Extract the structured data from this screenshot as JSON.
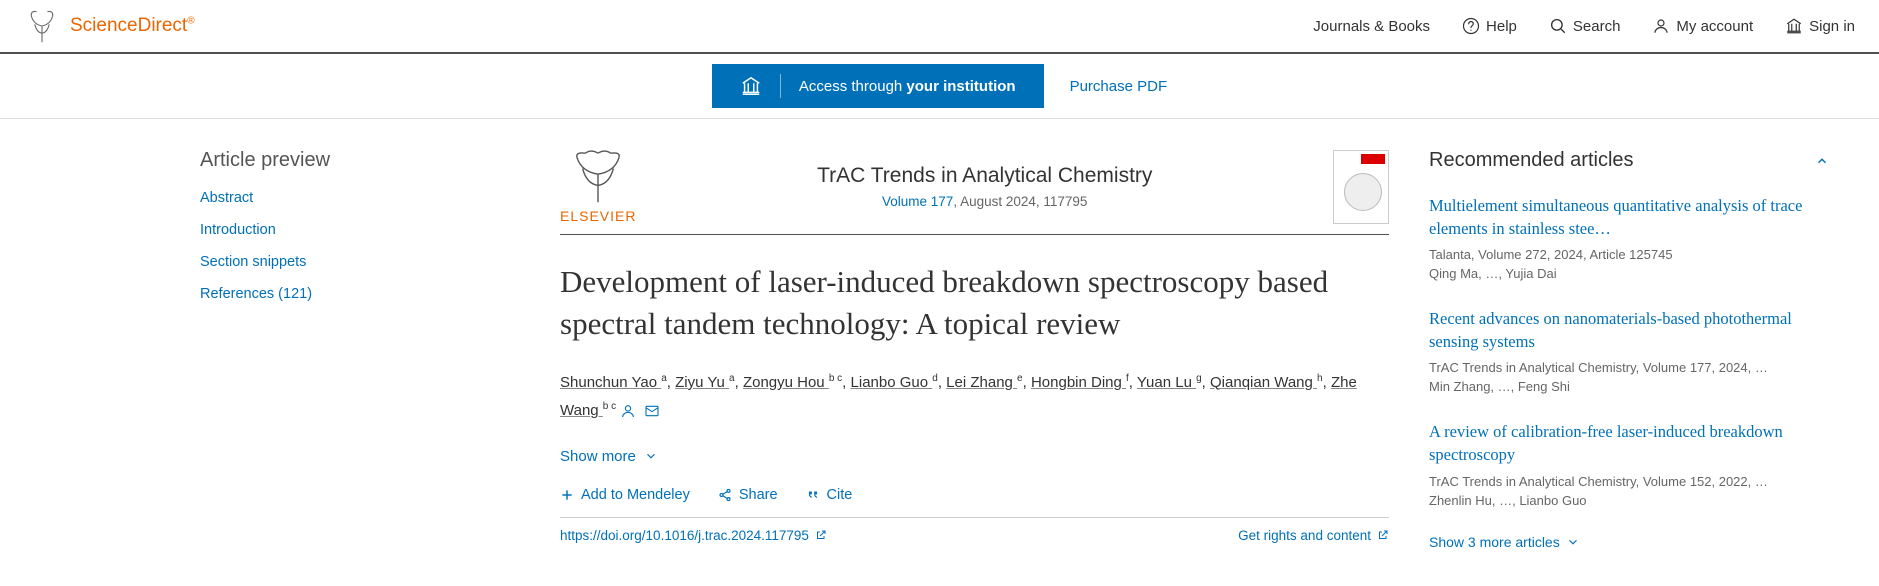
{
  "header": {
    "brand": "ScienceDirect",
    "nav": {
      "journals": "Journals & Books",
      "help": "Help",
      "search": "Search",
      "account": "My account",
      "signin": "Sign in"
    }
  },
  "accessBar": {
    "institution_pre": "Access through ",
    "institution_bold": "your institution",
    "purchase": "Purchase PDF"
  },
  "sidebar": {
    "title": "Article preview",
    "items": [
      "Abstract",
      "Introduction",
      "Section snippets",
      "References (121)"
    ]
  },
  "article": {
    "publisher_label": "ELSEVIER",
    "journal_name": "TrAC Trends in Analytical Chemistry",
    "volume_link": "Volume 177",
    "issue_plain": ", August 2024, 117795",
    "title": "Development of laser-induced breakdown spectroscopy based spectral tandem technology: A topical review",
    "authors": [
      {
        "name": "Shunchun Yao",
        "aff": "a"
      },
      {
        "name": "Ziyu Yu",
        "aff": "a"
      },
      {
        "name": "Zongyu Hou",
        "aff": "b c"
      },
      {
        "name": "Lianbo Guo",
        "aff": "d"
      },
      {
        "name": "Lei Zhang",
        "aff": "e"
      },
      {
        "name": "Hongbin Ding",
        "aff": "f"
      },
      {
        "name": "Yuan Lu",
        "aff": "g"
      },
      {
        "name": "Qianqian Wang",
        "aff": "h"
      },
      {
        "name": "Zhe Wang",
        "aff": "b c"
      }
    ],
    "show_more": "Show more",
    "actions": {
      "mendeley": "Add to Mendeley",
      "share": "Share",
      "cite": "Cite"
    },
    "doi": "https://doi.org/10.1016/j.trac.2024.117795",
    "rights": "Get rights and content"
  },
  "recommended": {
    "title": "Recommended articles",
    "items": [
      {
        "title": "Multielement simultaneous quantitative analysis of trace elements in stainless stee…",
        "journal": "Talanta, Volume 272, 2024, Article 125745",
        "authors": "Qing Ma, …, Yujia Dai"
      },
      {
        "title": "Recent advances on nanomaterials-based photothermal sensing systems",
        "journal": "TrAC Trends in Analytical Chemistry, Volume 177, 2024, …",
        "authors": "Min Zhang, …, Feng Shi"
      },
      {
        "title": "A review of calibration-free laser-induced breakdown spectroscopy",
        "journal": "TrAC Trends in Analytical Chemistry, Volume 152, 2022, …",
        "authors": "Zhenlin Hu, …, Lianbo Guo"
      }
    ],
    "show_more": "Show 3 more articles"
  },
  "colors": {
    "accent": "#0070b8",
    "brand": "#eb6500"
  }
}
